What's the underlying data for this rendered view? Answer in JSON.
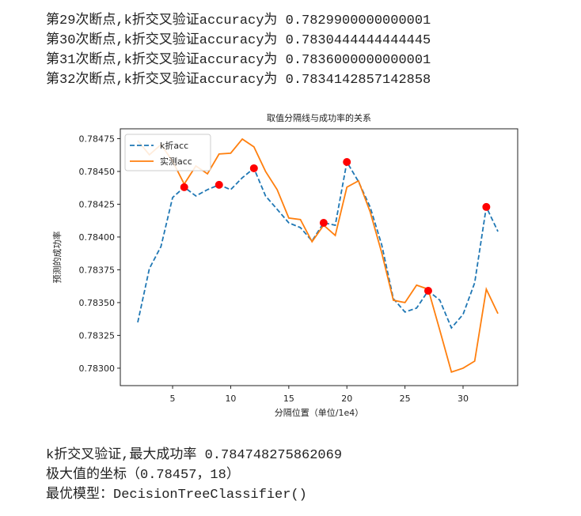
{
  "output_top": [
    "第29次断点,k折交叉验证accuracy为 0.7829900000000001",
    "第30次断点,k折交叉验证accuracy为 0.7830444444444445",
    "第31次断点,k折交叉验证accuracy为 0.7836000000000001",
    "第32次断点,k折交叉验证accuracy为 0.7834142857142858"
  ],
  "chart_data": {
    "type": "line",
    "title": "取值分隔线与成功率的关系",
    "x_label": "分隔位置（单位/1e4）",
    "y_label": "预测的成功率",
    "x": [
      2,
      3,
      4,
      5,
      6,
      7,
      8,
      9,
      10,
      11,
      12,
      13,
      14,
      15,
      16,
      17,
      18,
      19,
      20,
      21,
      22,
      23,
      24,
      25,
      26,
      27,
      28,
      29,
      30,
      31,
      32,
      33
    ],
    "series": [
      {
        "name": "k折acc",
        "color": "#1f77b4",
        "dash": true,
        "values": [
          0.783349,
          0.783759,
          0.783928,
          0.784301,
          0.78438,
          0.784313,
          0.784361,
          0.784398,
          0.784361,
          0.784452,
          0.784524,
          0.784313,
          0.784211,
          0.784108,
          0.784072,
          0.78397,
          0.784108,
          0.78409,
          0.784572,
          0.784422,
          0.784229,
          0.78394,
          0.78353,
          0.783428,
          0.783458,
          0.78359,
          0.783518,
          0.783307,
          0.78341,
          0.783651,
          0.784229,
          0.784042
        ]
      },
      {
        "name": "实测acc",
        "color": "#ff7f0e",
        "dash": false,
        "values": [
          0.784735,
          0.784627,
          0.784705,
          0.784578,
          0.784404,
          0.784542,
          0.784482,
          0.784633,
          0.784639,
          0.784747,
          0.784687,
          0.7845,
          0.784361,
          0.784145,
          0.784133,
          0.783964,
          0.78409,
          0.784012,
          0.78438,
          0.784428,
          0.784193,
          0.783879,
          0.783518,
          0.7835,
          0.783633,
          0.783602,
          0.783289,
          0.78297,
          0.783,
          0.783054,
          0.783602,
          0.783416
        ]
      }
    ],
    "points": {
      "color": "#ff0000",
      "x": [
        6,
        9,
        12,
        18,
        20,
        27,
        32
      ],
      "values": [
        0.78438,
        0.784398,
        0.784524,
        0.784108,
        0.784572,
        0.78359,
        0.784229
      ]
    },
    "xlim": [
      0.5,
      34.7
    ],
    "ylim": [
      0.782867,
      0.784825
    ],
    "xticks": [
      5,
      10,
      15,
      20,
      25,
      30
    ],
    "yticks": [
      {
        "value": 0.783,
        "label": "0.78300"
      },
      0.78325,
      {
        "value": 0.7835,
        "label": "0.78350"
      },
      0.78375,
      {
        "value": 0.784,
        "label": "0.78400"
      },
      0.78425,
      {
        "value": 0.7845,
        "label": "0.78450"
      },
      0.78475
    ],
    "legend": "upper left"
  },
  "output_bottom": [
    "k折交叉验证,最大成功率 0.784748275862069",
    "极大值的坐标（0.78457，18）",
    "最优模型：DecisionTreeClassifier()"
  ]
}
